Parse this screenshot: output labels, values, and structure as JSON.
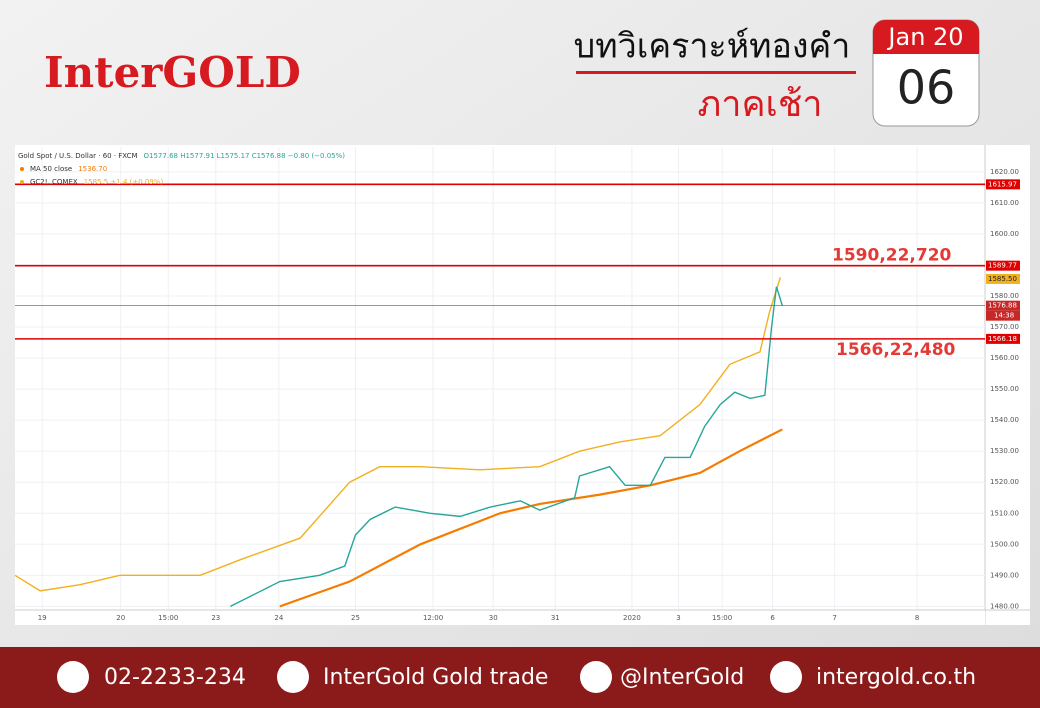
{
  "header": {
    "logo": "InterGOLD",
    "title": "บทวิเคราะห์ทองคำ",
    "subtitle": "ภาคเช้า",
    "calendar": {
      "month": "Jan 20",
      "day": "06"
    }
  },
  "chart_data": {
    "type": "line",
    "xlim": [
      0,
      100
    ],
    "xticks": [
      {
        "value": 2.8,
        "label": "19"
      },
      {
        "value": 10.9,
        "label": "20"
      },
      {
        "value": 15.8,
        "label": "15:00"
      },
      {
        "value": 20.7,
        "label": "23"
      },
      {
        "value": 27.2,
        "label": "24"
      },
      {
        "value": 35.1,
        "label": "25"
      },
      {
        "value": 43.1,
        "label": "12:00"
      },
      {
        "value": 49.3,
        "label": "30"
      },
      {
        "value": 55.7,
        "label": "31"
      },
      {
        "value": 63.6,
        "label": "2020"
      },
      {
        "value": 68.4,
        "label": "3"
      },
      {
        "value": 72.9,
        "label": "15:00"
      },
      {
        "value": 78.1,
        "label": "6"
      },
      {
        "value": 84.5,
        "label": "7"
      },
      {
        "value": 93,
        "label": "8"
      }
    ],
    "ylim": [
      1474,
      1628
    ],
    "yticks": [
      {
        "value": 1480,
        "label": "1480.00"
      },
      {
        "value": 1490,
        "label": "1490.00"
      },
      {
        "value": 1500,
        "label": "1500.00"
      },
      {
        "value": 1510,
        "label": "1510.00"
      },
      {
        "value": 1520,
        "label": "1520.00"
      },
      {
        "value": 1530,
        "label": "1530.00"
      },
      {
        "value": 1540,
        "label": "1540.00"
      },
      {
        "value": 1550,
        "label": "1550.00"
      },
      {
        "value": 1560,
        "label": "1560.00"
      },
      {
        "value": 1570,
        "label": "1570.00"
      },
      {
        "value": 1580,
        "label": "1580.00"
      },
      {
        "value": 1590,
        "label": "1590.00"
      },
      {
        "value": 1600,
        "label": "1600.00"
      },
      {
        "value": 1610,
        "label": "1610.00"
      },
      {
        "value": 1620,
        "label": "1620.00"
      }
    ],
    "grid": true,
    "series": [
      {
        "name": "Gold Spot / U.S. Dollar · 60 · FXCM",
        "quote": "O1577.68 H1577.91 L1575.17 C1576.88 −0.80 (−0.05%)",
        "color": "#26a69a",
        "x": [
          22.2,
          27.3,
          31.4,
          34,
          35.1,
          36.6,
          39.2,
          42.8,
          45.9,
          49,
          52.1,
          54.1,
          57.7,
          58.2,
          61.3,
          62.9,
          65.5,
          67,
          69.6,
          71.1,
          72.7,
          74.2,
          75.8,
          77.3,
          78,
          78.5,
          79.1
        ],
        "values": [
          1480,
          1488,
          1490,
          1493,
          1503,
          1508,
          1512,
          1510,
          1509,
          1512,
          1514,
          1511,
          1515,
          1522,
          1525,
          1519,
          1519,
          1528,
          1528,
          1538,
          1545,
          1549,
          1547,
          1548,
          1570,
          1583,
          1577
        ]
      },
      {
        "name": "MA 50 close",
        "quote": "1536.70",
        "color": "#f57c00",
        "x": [
          27.3,
          34.5,
          41.8,
          50,
          54.1,
          60.3,
          65.5,
          70.6,
          74.7,
          79.1
        ],
        "values": [
          1480,
          1488,
          1500,
          1510,
          1513,
          1516,
          1519,
          1523,
          1530,
          1537
        ]
      },
      {
        "name": "GC2!, COMEX",
        "quote": "1585.5 +1.4 (+0.09%)",
        "color": "#f2b01e",
        "x": [
          0,
          2.6,
          6.7,
          10.8,
          19.1,
          23.2,
          29.4,
          34.5,
          37.6,
          41.8,
          47.9,
          54.1,
          58.2,
          62.4,
          66.5,
          70.6,
          73.7,
          76.8,
          77.8,
          78.9
        ],
        "values": [
          1490,
          1485,
          1487,
          1490,
          1490,
          1495,
          1502,
          1520,
          1525,
          1525,
          1524,
          1525,
          1530,
          1533,
          1535,
          1545,
          1558,
          1562,
          1575,
          1586
        ]
      }
    ],
    "levels": [
      {
        "value": 1615.97,
        "label": "1615.97",
        "color": "#e00000"
      },
      {
        "value": 1589.77,
        "label": "1589.77",
        "color": "#e00000"
      },
      {
        "value": 1585.5,
        "label": "1585.50",
        "color": "#f2b01e"
      },
      {
        "value": 1576.88,
        "label": "1576.88",
        "color": "#c62828"
      },
      {
        "value": 1566.18,
        "label": "1566.18",
        "color": "#e00000"
      }
    ],
    "countdown": "14:38",
    "annotations": [
      "1590,22,720",
      "1566,22,480"
    ]
  },
  "footer": {
    "phone": "02-2233-234",
    "facebook": "InterGold Gold trade",
    "line": "@InterGold",
    "website": "intergold.co.th"
  }
}
